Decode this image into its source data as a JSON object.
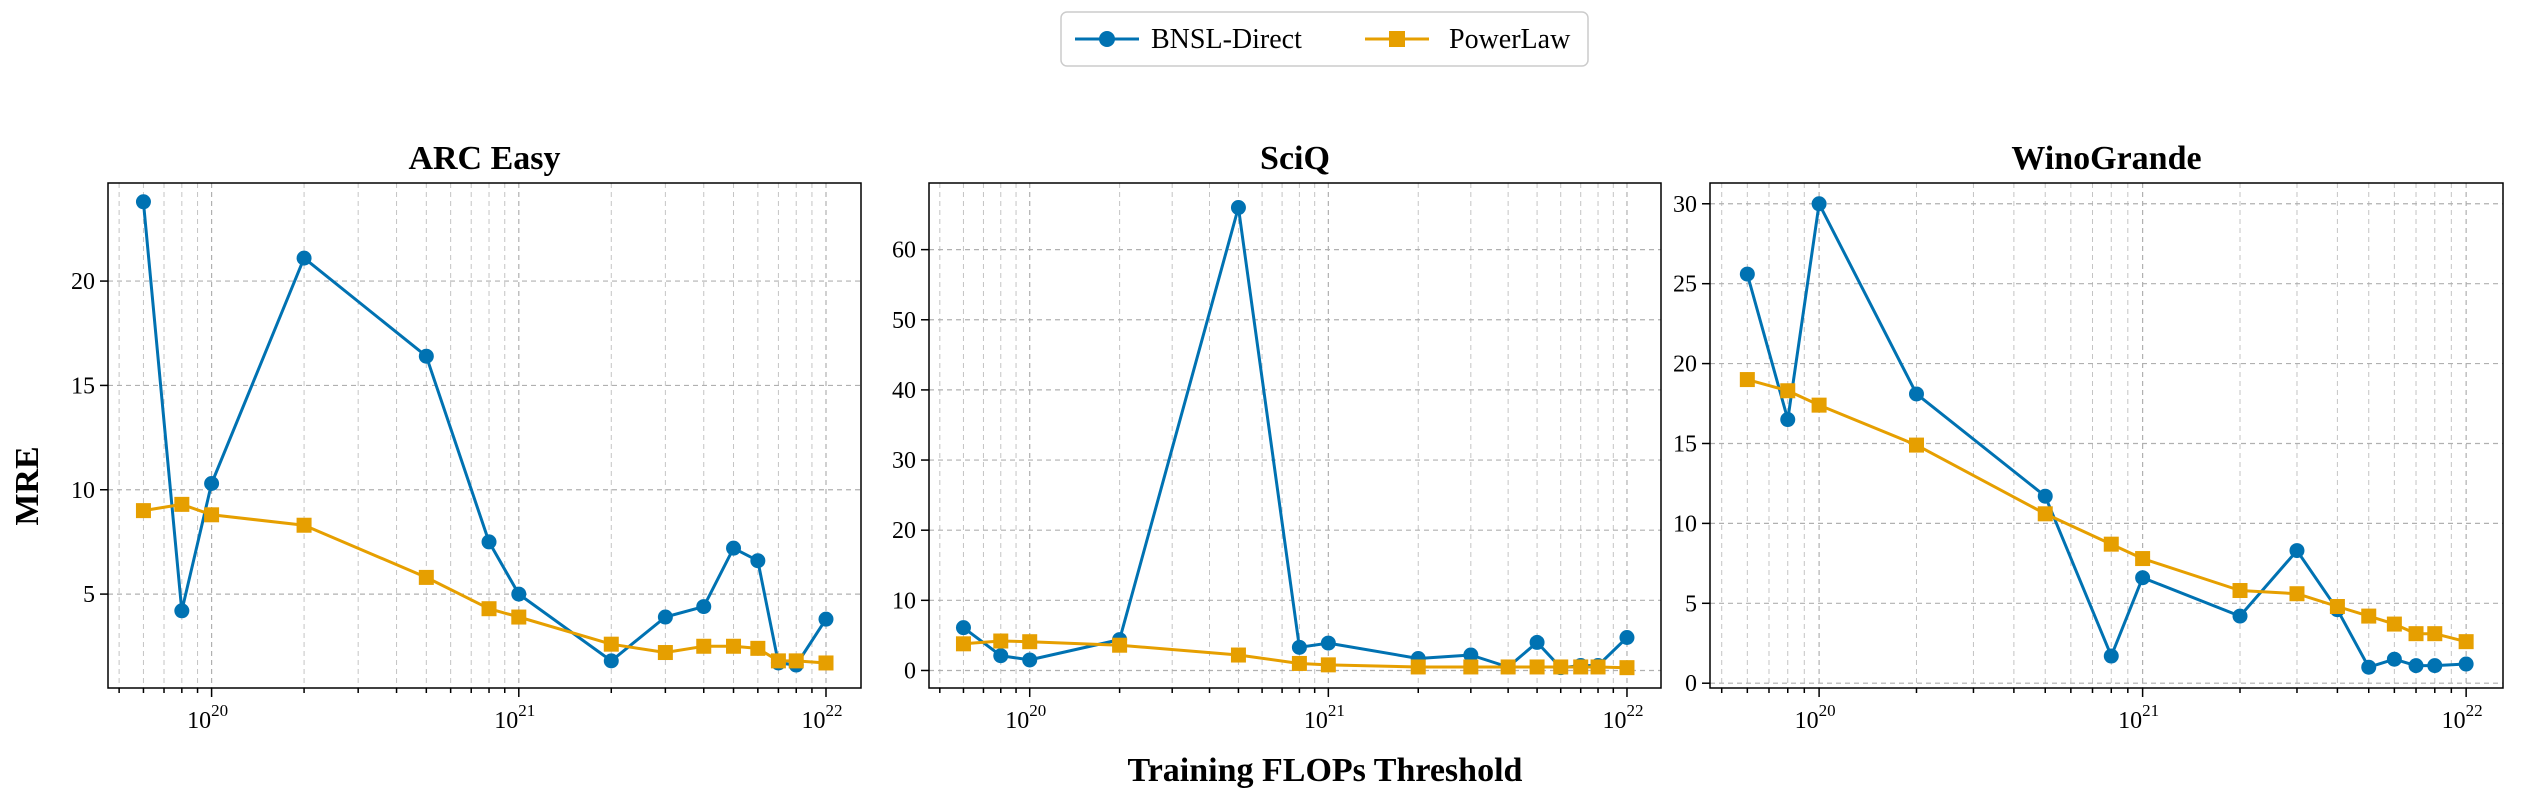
{
  "chart_data": {
    "type": "line",
    "xlabel": "Training FLOPs Threshold",
    "ylabel": "MRE",
    "xscale": "log",
    "legend": {
      "placement": "top-center",
      "entries": [
        {
          "name": "BNSL-Direct",
          "color": "#0072B2",
          "marker": "circle"
        },
        {
          "name": "PowerLaw",
          "color": "#E69F00",
          "marker": "square"
        }
      ]
    },
    "x_tick_labels": [
      {
        "base": "10",
        "exp": "20"
      },
      {
        "base": "10",
        "exp": "21"
      },
      {
        "base": "10",
        "exp": "22"
      }
    ],
    "panels": [
      {
        "title": "ARC Easy",
        "ylim": [
          0.5,
          24.7
        ],
        "yticks": [
          {
            "value": 5,
            "label": "5"
          },
          {
            "value": 10,
            "label": "10"
          },
          {
            "value": 15,
            "label": "15"
          },
          {
            "value": 20,
            "label": "20"
          }
        ],
        "x": [
          6e+19,
          8e+19,
          1e+20,
          2e+20,
          5e+20,
          8e+20,
          1e+21,
          2e+21,
          3e+21,
          4e+21,
          5e+21,
          6e+21,
          7e+21,
          8e+21,
          1e+22
        ],
        "series": [
          {
            "name": "BNSL-Direct",
            "values": [
              23.8,
              4.2,
              10.3,
              21.1,
              16.4,
              7.5,
              5.0,
              1.8,
              3.9,
              4.4,
              7.2,
              6.6,
              1.7,
              1.6,
              3.8
            ]
          },
          {
            "name": "PowerLaw",
            "values": [
              9.0,
              9.3,
              8.8,
              8.3,
              5.8,
              4.3,
              3.9,
              2.6,
              2.2,
              2.5,
              2.5,
              2.4,
              1.8,
              1.8,
              1.7
            ]
          }
        ]
      },
      {
        "title": "SciQ",
        "ylim": [
          -2.5,
          69.5
        ],
        "yticks": [
          {
            "value": 0,
            "label": "0"
          },
          {
            "value": 10,
            "label": "10"
          },
          {
            "value": 20,
            "label": "20"
          },
          {
            "value": 30,
            "label": "30"
          },
          {
            "value": 40,
            "label": "40"
          },
          {
            "value": 50,
            "label": "50"
          },
          {
            "value": 60,
            "label": "60"
          }
        ],
        "x": [
          6e+19,
          8e+19,
          1e+20,
          2e+20,
          5e+20,
          8e+20,
          1e+21,
          2e+21,
          3e+21,
          4e+21,
          5e+21,
          6e+21,
          7e+21,
          8e+21,
          1e+22
        ],
        "series": [
          {
            "name": "BNSL-Direct",
            "values": [
              6.1,
              2.1,
              1.5,
              4.4,
              66.0,
              3.3,
              3.9,
              1.7,
              2.2,
              0.5,
              4.0,
              0.4,
              0.7,
              0.7,
              4.7
            ]
          },
          {
            "name": "PowerLaw",
            "values": [
              3.8,
              4.2,
              4.1,
              3.6,
              2.2,
              1.0,
              0.8,
              0.5,
              0.5,
              0.5,
              0.5,
              0.5,
              0.5,
              0.5,
              0.4
            ]
          }
        ]
      },
      {
        "title": "WinoGrande",
        "ylim": [
          -0.3,
          31.3
        ],
        "yticks": [
          {
            "value": 0,
            "label": "0"
          },
          {
            "value": 5,
            "label": "5"
          },
          {
            "value": 10,
            "label": "10"
          },
          {
            "value": 15,
            "label": "15"
          },
          {
            "value": 20,
            "label": "20"
          },
          {
            "value": 25,
            "label": "25"
          },
          {
            "value": 30,
            "label": "30"
          }
        ],
        "x": [
          6e+19,
          8e+19,
          1e+20,
          2e+20,
          5e+20,
          8e+20,
          1e+21,
          2e+21,
          3e+21,
          4e+21,
          5e+21,
          6e+21,
          7e+21,
          8e+21,
          1e+22
        ],
        "series": [
          {
            "name": "BNSL-Direct",
            "values": [
              25.6,
              16.5,
              30.0,
              18.1,
              11.7,
              1.7,
              6.6,
              4.2,
              8.3,
              4.6,
              1.0,
              1.5,
              1.1,
              1.1,
              1.2
            ]
          },
          {
            "name": "PowerLaw",
            "values": [
              19.0,
              18.3,
              17.4,
              14.9,
              10.6,
              8.7,
              7.8,
              5.8,
              5.6,
              4.8,
              4.2,
              3.7,
              3.1,
              3.1,
              2.6
            ]
          }
        ]
      }
    ]
  }
}
